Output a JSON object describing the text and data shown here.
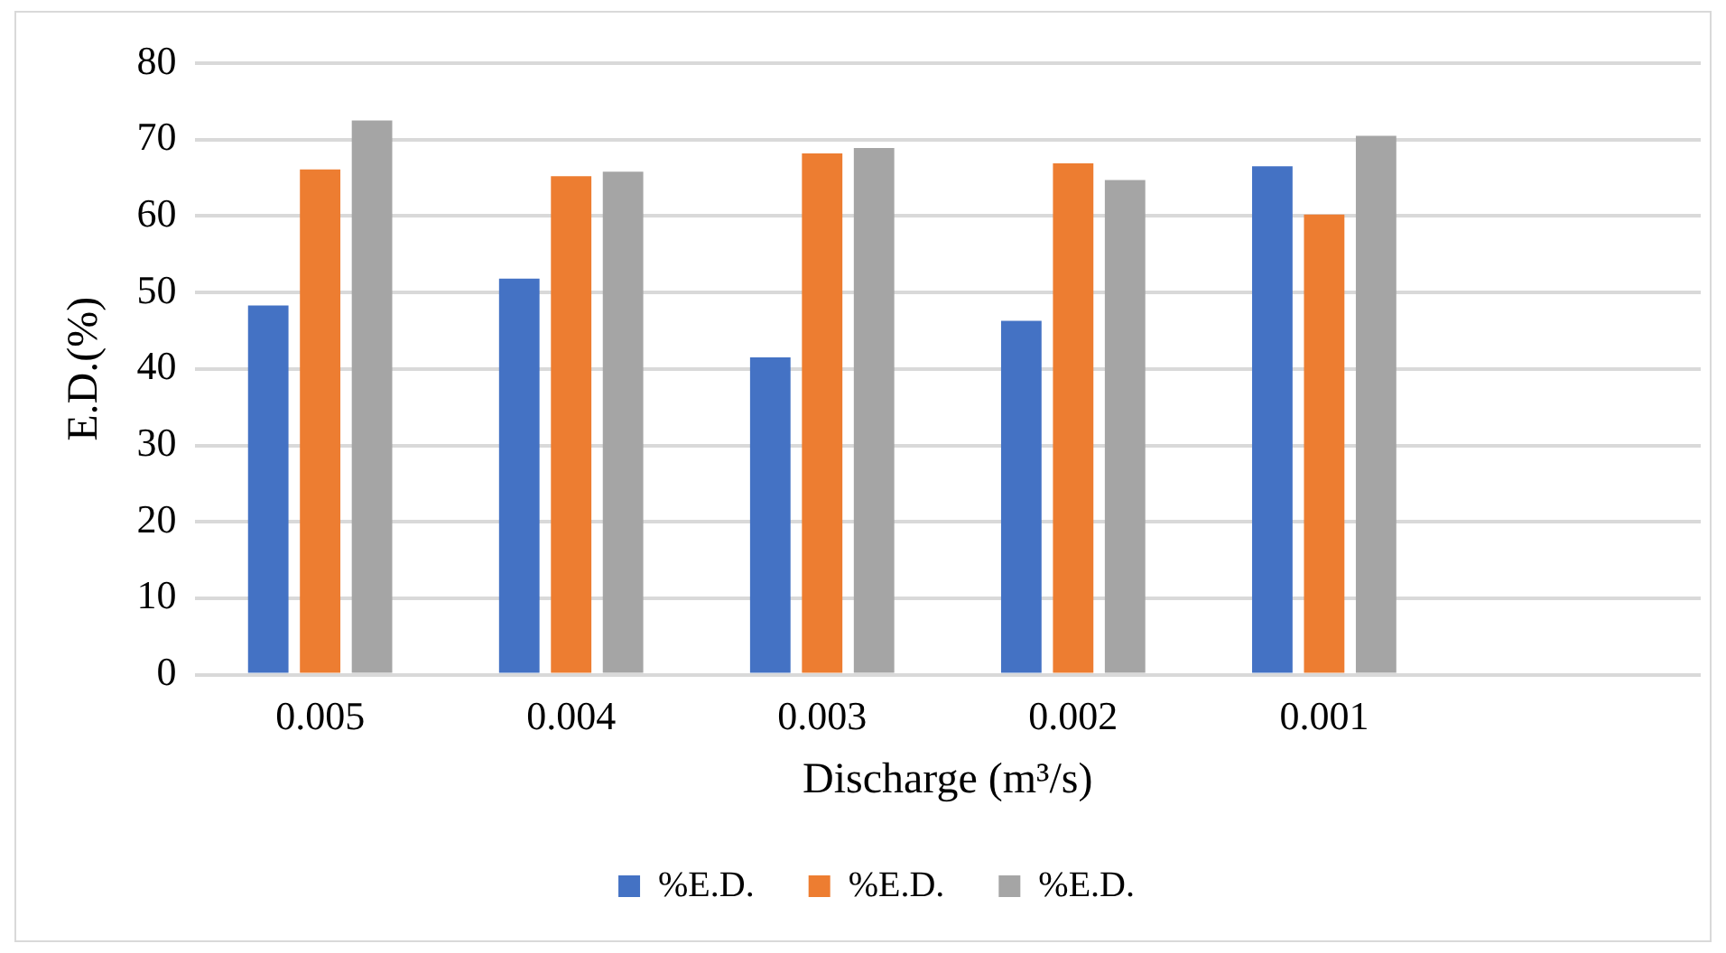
{
  "chart_data": {
    "type": "bar",
    "xlabel": "Discharge (m³/s)",
    "ylabel": "E.D.(%)",
    "categories": [
      "0.005",
      "0.004",
      "0.003",
      "0.002",
      "0.001",
      null
    ],
    "series": [
      {
        "name": "%E.D.",
        "color": "#4472c4",
        "values": [
          48.3,
          51.8,
          41.5,
          46.3,
          66.5,
          null
        ]
      },
      {
        "name": "%E.D.",
        "color": "#ed7d31",
        "values": [
          66.1,
          65.2,
          68.2,
          66.9,
          60.2,
          null
        ]
      },
      {
        "name": "%E.D.",
        "color": "#a5a5a5",
        "values": [
          72.5,
          65.8,
          68.9,
          64.7,
          70.5,
          null
        ]
      }
    ],
    "ylim": [
      0,
      80
    ],
    "yticks": [
      0,
      10,
      20,
      30,
      40,
      50,
      60,
      70,
      80
    ],
    "grid": "y",
    "legend": "bottom"
  }
}
